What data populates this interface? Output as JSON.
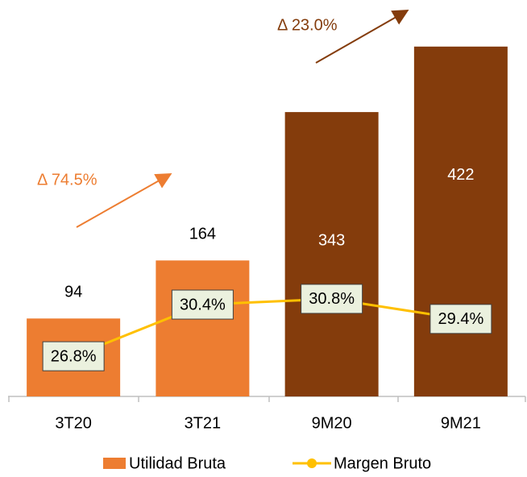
{
  "chart_data": {
    "type": "bar",
    "categories": [
      "3T20",
      "3T21",
      "9M20",
      "9M21"
    ],
    "series": [
      {
        "name": "Utilidad Bruta",
        "type": "bar",
        "color": "#ED7D31",
        "colors": [
          "#ED7D31",
          "#ED7D31",
          "#843C0C",
          "#843C0C"
        ],
        "values": [
          94,
          164,
          343,
          422
        ]
      },
      {
        "name": "Margen Bruto",
        "type": "line",
        "axis": "y2",
        "color": "#FFC000",
        "values": [
          26.8,
          30.4,
          30.8,
          29.4
        ],
        "value_labels": [
          "26.8%",
          "30.4%",
          "30.8%",
          "29.4%"
        ]
      }
    ],
    "ylim": [
      0,
      450
    ],
    "y2lim": [
      24,
      50
    ],
    "annotations": [
      {
        "text": "Δ 74.5%",
        "color": "#ED7D31"
      },
      {
        "text": "Δ 23.0%",
        "color": "#843C0C"
      }
    ]
  }
}
